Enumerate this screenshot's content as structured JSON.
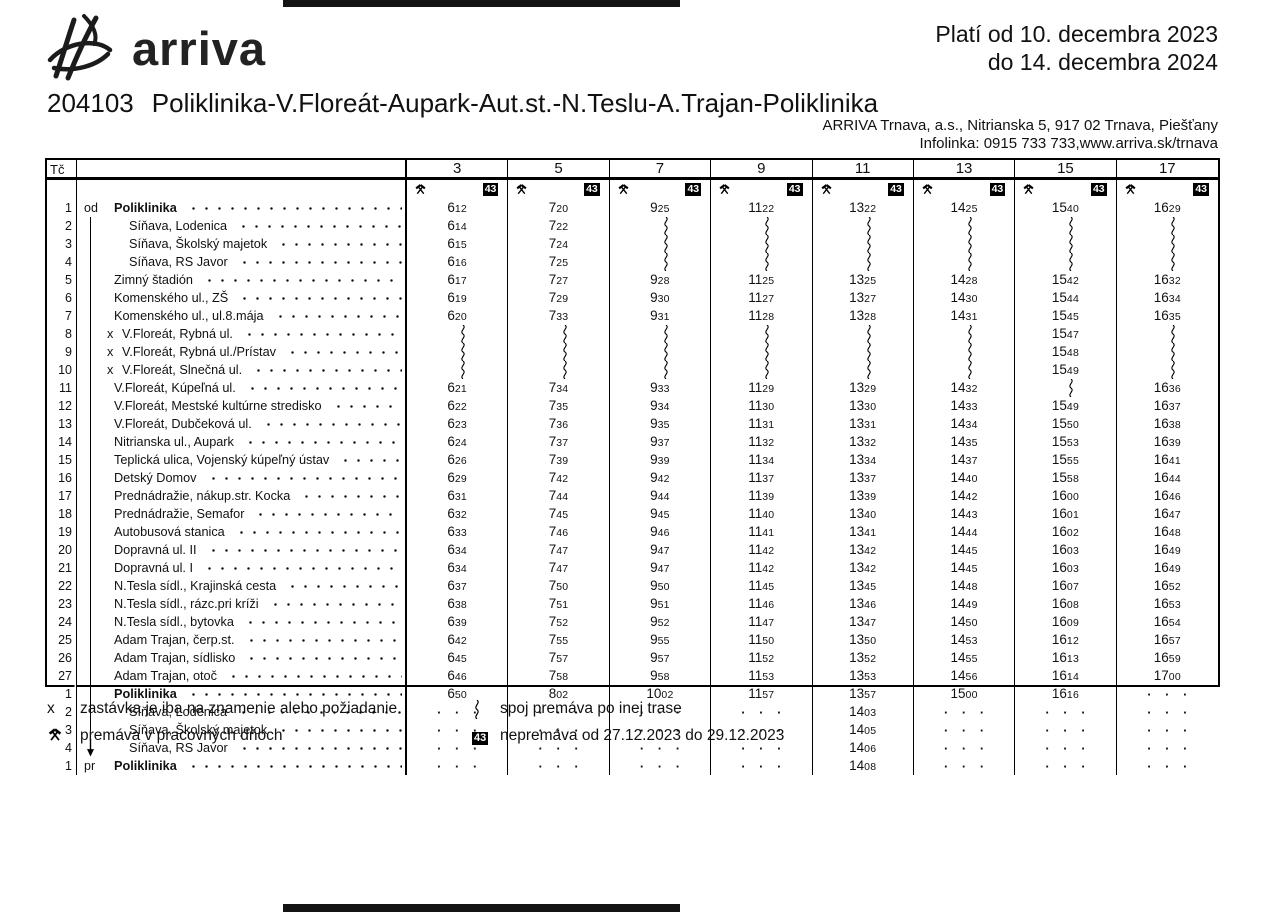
{
  "header": {
    "brand": "arriva",
    "validity_line1": "Platí od 10. decembra 2023",
    "validity_line2": "do 14. decembra 2024",
    "route_number": "204103",
    "route_name": "Poliklinika-V.Floreát-Aupark-Aut.st.-N.Teslu-A.Trajan-Poliklinika",
    "company_line": "ARRIVA Trnava, a.s., Nitrianska 5, 917 02 Trnava, Piešťany",
    "infoline": "Infolinka: 0915 733 733,www.arriva.sk/trnava"
  },
  "table": {
    "tc_label": "Tč",
    "columns": [
      "3",
      "5",
      "7",
      "9",
      "11",
      "13",
      "15",
      "17"
    ],
    "column_badge": "43",
    "column_icon": "crossed-hammers",
    "rows": [
      {
        "tc": "1",
        "marker": "od",
        "line": false,
        "arrow": false,
        "x": false,
        "indent": 0,
        "bold": true,
        "name": "Poliklinika",
        "times": [
          "612",
          "720",
          "925",
          "1122",
          "1322",
          "1425",
          "1540",
          "1629"
        ]
      },
      {
        "tc": "2",
        "marker": "",
        "line": true,
        "arrow": false,
        "x": false,
        "indent": 1,
        "bold": false,
        "name": "Síňava, Lodenica",
        "times": [
          "614",
          "722",
          "~",
          "~",
          "~",
          "~",
          "~",
          "~"
        ]
      },
      {
        "tc": "3",
        "marker": "",
        "line": true,
        "arrow": false,
        "x": false,
        "indent": 1,
        "bold": false,
        "name": "Síňava, Školský majetok",
        "times": [
          "615",
          "724",
          "~",
          "~",
          "~",
          "~",
          "~",
          "~"
        ]
      },
      {
        "tc": "4",
        "marker": "",
        "line": true,
        "arrow": false,
        "x": false,
        "indent": 1,
        "bold": false,
        "name": "Síňava, RS Javor",
        "times": [
          "616",
          "725",
          "~",
          "~",
          "~",
          "~",
          "~",
          "~"
        ]
      },
      {
        "tc": "5",
        "marker": "",
        "line": true,
        "arrow": false,
        "x": false,
        "indent": 0,
        "bold": false,
        "name": "Zimný štadión",
        "times": [
          "617",
          "727",
          "928",
          "1125",
          "1325",
          "1428",
          "1542",
          "1632"
        ]
      },
      {
        "tc": "6",
        "marker": "",
        "line": true,
        "arrow": false,
        "x": false,
        "indent": 0,
        "bold": false,
        "name": "Komenského ul., ZŠ",
        "times": [
          "619",
          "729",
          "930",
          "1127",
          "1327",
          "1430",
          "1544",
          "1634"
        ]
      },
      {
        "tc": "7",
        "marker": "",
        "line": true,
        "arrow": false,
        "x": false,
        "indent": 0,
        "bold": false,
        "name": "Komenského ul., ul.8.mája",
        "times": [
          "620",
          "733",
          "931",
          "1128",
          "1328",
          "1431",
          "1545",
          "1635"
        ]
      },
      {
        "tc": "8",
        "marker": "",
        "line": true,
        "arrow": false,
        "x": true,
        "indent": 0,
        "bold": false,
        "name": "V.Floreát, Rybná ul.",
        "times": [
          "~",
          "~",
          "~",
          "~",
          "~",
          "~",
          "1547",
          "~"
        ]
      },
      {
        "tc": "9",
        "marker": "",
        "line": true,
        "arrow": false,
        "x": true,
        "indent": 0,
        "bold": false,
        "name": "V.Floreát, Rybná ul./Prístav",
        "times": [
          "~",
          "~",
          "~",
          "~",
          "~",
          "~",
          "1548",
          "~"
        ]
      },
      {
        "tc": "10",
        "marker": "",
        "line": true,
        "arrow": false,
        "x": true,
        "indent": 0,
        "bold": false,
        "name": "V.Floreát, Slnečná ul.",
        "times": [
          "~",
          "~",
          "~",
          "~",
          "~",
          "~",
          "1549",
          "~"
        ]
      },
      {
        "tc": "11",
        "marker": "",
        "line": true,
        "arrow": false,
        "x": false,
        "indent": 0,
        "bold": false,
        "name": "V.Floreát, Kúpeľná ul.",
        "times": [
          "621",
          "734",
          "933",
          "1129",
          "1329",
          "1432",
          "~",
          "1636"
        ]
      },
      {
        "tc": "12",
        "marker": "",
        "line": true,
        "arrow": false,
        "x": false,
        "indent": 0,
        "bold": false,
        "name": "V.Floreát, Mestské kultúrne stredisko",
        "times": [
          "622",
          "735",
          "934",
          "1130",
          "1330",
          "1433",
          "1549",
          "1637"
        ]
      },
      {
        "tc": "13",
        "marker": "",
        "line": true,
        "arrow": false,
        "x": false,
        "indent": 0,
        "bold": false,
        "name": "V.Floreát, Dubčeková ul.",
        "times": [
          "623",
          "736",
          "935",
          "1131",
          "1331",
          "1434",
          "1550",
          "1638"
        ]
      },
      {
        "tc": "14",
        "marker": "",
        "line": true,
        "arrow": false,
        "x": false,
        "indent": 0,
        "bold": false,
        "name": "Nitrianska ul., Aupark",
        "times": [
          "624",
          "737",
          "937",
          "1132",
          "1332",
          "1435",
          "1553",
          "1639"
        ]
      },
      {
        "tc": "15",
        "marker": "",
        "line": true,
        "arrow": false,
        "x": false,
        "indent": 0,
        "bold": false,
        "name": "Teplická ulica, Vojenský kúpeľný ústav",
        "times": [
          "626",
          "739",
          "939",
          "1134",
          "1334",
          "1437",
          "1555",
          "1641"
        ]
      },
      {
        "tc": "16",
        "marker": "",
        "line": true,
        "arrow": false,
        "x": false,
        "indent": 0,
        "bold": false,
        "name": "Detský Domov",
        "times": [
          "629",
          "742",
          "942",
          "1137",
          "1337",
          "1440",
          "1558",
          "1644"
        ]
      },
      {
        "tc": "17",
        "marker": "",
        "line": true,
        "arrow": false,
        "x": false,
        "indent": 0,
        "bold": false,
        "name": "Prednádražie, nákup.str. Kocka",
        "times": [
          "631",
          "744",
          "944",
          "1139",
          "1339",
          "1442",
          "1600",
          "1646"
        ]
      },
      {
        "tc": "18",
        "marker": "",
        "line": true,
        "arrow": false,
        "x": false,
        "indent": 0,
        "bold": false,
        "name": "Prednádražie, Semafor",
        "times": [
          "632",
          "745",
          "945",
          "1140",
          "1340",
          "1443",
          "1601",
          "1647"
        ]
      },
      {
        "tc": "19",
        "marker": "",
        "line": true,
        "arrow": false,
        "x": false,
        "indent": 0,
        "bold": false,
        "name": "Autobusová stanica",
        "times": [
          "633",
          "746",
          "946",
          "1141",
          "1341",
          "1444",
          "1602",
          "1648"
        ]
      },
      {
        "tc": "20",
        "marker": "",
        "line": true,
        "arrow": false,
        "x": false,
        "indent": 0,
        "bold": false,
        "name": "Dopravná ul. II",
        "times": [
          "634",
          "747",
          "947",
          "1142",
          "1342",
          "1445",
          "1603",
          "1649"
        ]
      },
      {
        "tc": "21",
        "marker": "",
        "line": true,
        "arrow": false,
        "x": false,
        "indent": 0,
        "bold": false,
        "name": "Dopravná ul. I",
        "times": [
          "634",
          "747",
          "947",
          "1142",
          "1342",
          "1445",
          "1603",
          "1649"
        ]
      },
      {
        "tc": "22",
        "marker": "",
        "line": true,
        "arrow": false,
        "x": false,
        "indent": 0,
        "bold": false,
        "name": "N.Tesla sídl., Krajinská cesta",
        "times": [
          "637",
          "750",
          "950",
          "1145",
          "1345",
          "1448",
          "1607",
          "1652"
        ]
      },
      {
        "tc": "23",
        "marker": "",
        "line": true,
        "arrow": false,
        "x": false,
        "indent": 0,
        "bold": false,
        "name": "N.Tesla sídl., rázc.pri kríži",
        "times": [
          "638",
          "751",
          "951",
          "1146",
          "1346",
          "1449",
          "1608",
          "1653"
        ]
      },
      {
        "tc": "24",
        "marker": "",
        "line": true,
        "arrow": false,
        "x": false,
        "indent": 0,
        "bold": false,
        "name": "N.Tesla sídl., bytovka",
        "times": [
          "639",
          "752",
          "952",
          "1147",
          "1347",
          "1450",
          "1609",
          "1654"
        ]
      },
      {
        "tc": "25",
        "marker": "",
        "line": true,
        "arrow": false,
        "x": false,
        "indent": 0,
        "bold": false,
        "name": "Adam Trajan, čerp.st.",
        "times": [
          "642",
          "755",
          "955",
          "1150",
          "1350",
          "1453",
          "1612",
          "1657"
        ]
      },
      {
        "tc": "26",
        "marker": "",
        "line": true,
        "arrow": false,
        "x": false,
        "indent": 0,
        "bold": false,
        "name": "Adam Trajan, sídlisko",
        "times": [
          "645",
          "757",
          "957",
          "1152",
          "1352",
          "1455",
          "1613",
          "1659"
        ]
      },
      {
        "tc": "27",
        "marker": "",
        "line": true,
        "arrow": false,
        "x": false,
        "indent": 0,
        "bold": false,
        "name": "Adam Trajan, otoč",
        "times": [
          "646",
          "758",
          "958",
          "1153",
          "1353",
          "1456",
          "1614",
          "1700"
        ]
      },
      {
        "tc": "1",
        "marker": "",
        "line": true,
        "arrow": false,
        "x": false,
        "indent": 0,
        "bold": true,
        "name": "Poliklinika",
        "times": [
          "650",
          "802",
          "1002",
          "1157",
          "1357",
          "1500",
          "1616",
          "..."
        ]
      },
      {
        "tc": "2",
        "marker": "",
        "line": true,
        "arrow": false,
        "x": false,
        "indent": 1,
        "bold": false,
        "name": "Síňava, Lodenica",
        "times": [
          "...",
          "...",
          "...",
          "...",
          "1403",
          "...",
          "...",
          "..."
        ]
      },
      {
        "tc": "3",
        "marker": "",
        "line": true,
        "arrow": false,
        "x": false,
        "indent": 1,
        "bold": false,
        "name": "Síňava, Školský majetok",
        "times": [
          "...",
          "...",
          "...",
          "...",
          "1405",
          "...",
          "...",
          "..."
        ]
      },
      {
        "tc": "4",
        "marker": "",
        "line": true,
        "arrow": true,
        "x": false,
        "indent": 1,
        "bold": false,
        "name": "Síňava, RS Javor",
        "times": [
          "...",
          "...",
          "...",
          "...",
          "1406",
          "...",
          "...",
          "..."
        ]
      },
      {
        "tc": "1",
        "marker": "pr",
        "line": false,
        "arrow": false,
        "x": false,
        "indent": 0,
        "bold": true,
        "name": "Poliklinika",
        "times": [
          "...",
          "...",
          "...",
          "...",
          "1408",
          "...",
          "...",
          "..."
        ]
      }
    ]
  },
  "legend": {
    "x_symbol": "x",
    "x_text": "zastávka je iba na znamenie alebo požiadanie",
    "workdays_icon": "crossed-hammers",
    "workdays_text": "premáva v pracovných dňoch",
    "wavy_icon": "other-route-squiggle",
    "wavy_text": "spoj premáva po inej trase",
    "badge": "43",
    "badge_text": "nepremáva od 27.12.2023 do 29.12.2023"
  }
}
